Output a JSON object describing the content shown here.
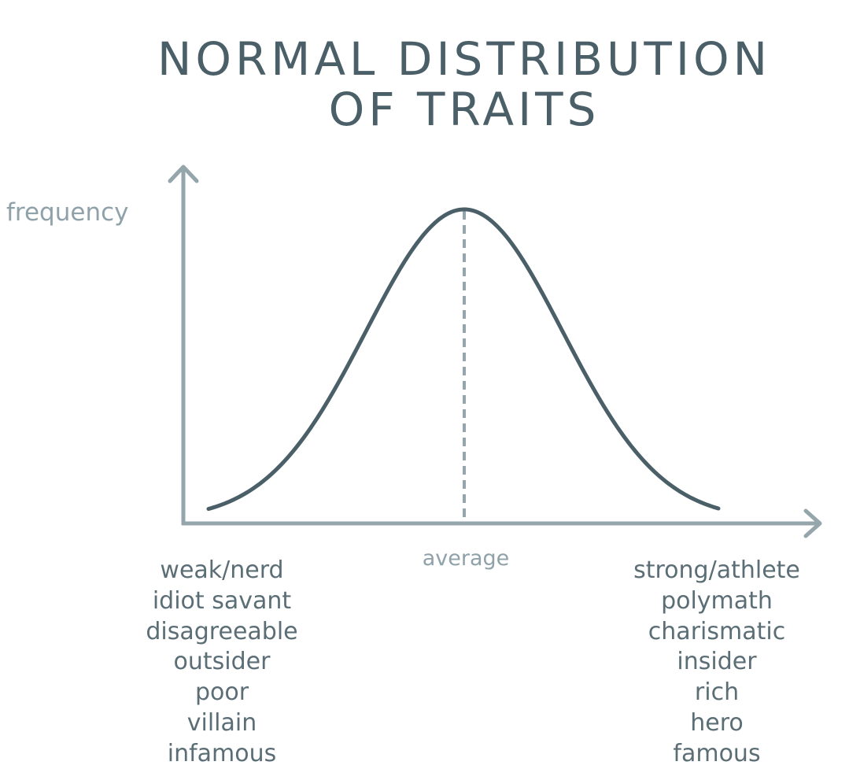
{
  "title": {
    "line1": "NORMAL DISTRIBUTION",
    "line2": "OF TRAITS"
  },
  "ylabel": "frequency",
  "average_label": "average",
  "left_traits": [
    "weak/nerd",
    "idiot savant",
    "disagreeable",
    "outsider",
    "poor",
    "villain",
    "infamous"
  ],
  "right_traits": [
    "strong/athlete",
    "polymath",
    "charismatic",
    "insider",
    "rich",
    "hero",
    "famous"
  ],
  "colors": {
    "axis": "#94a5ac",
    "curve": "#4a5f67",
    "title": "#4a5f67",
    "muted_label": "#8fa1a9",
    "trait_text": "#5b6e76"
  }
}
